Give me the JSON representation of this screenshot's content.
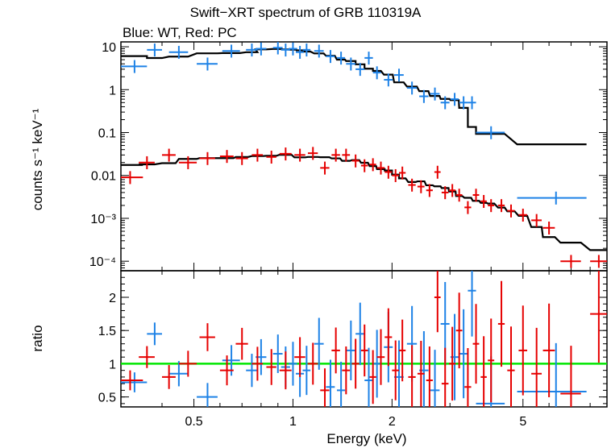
{
  "title": "Swift−XRT spectrum of GRB 110319A",
  "subtitle": "Blue: WT, Red: PC",
  "colors": {
    "wt": "#1e82e6",
    "pc": "#e60000",
    "model": "#000000",
    "unity": "#00e600"
  },
  "chart_data": [
    {
      "type": "scatter",
      "panel": "spectrum",
      "xlabel": "Energy (keV)",
      "ylabel": "counts s⁻¹ keV⁻¹",
      "xscale": "log",
      "yscale": "log",
      "xlim": [
        0.3,
        9.0
      ],
      "ylim": [
        6e-05,
        13
      ],
      "y_tick_labels": [
        "10",
        "1",
        "0.1",
        "0.01",
        "10⁻³",
        "10⁻⁴"
      ],
      "y_tick_values": [
        10,
        1,
        0.1,
        0.01,
        0.001,
        0.0001
      ],
      "series": [
        {
          "name": "Blue: WT",
          "x": [
            0.33,
            0.38,
            0.45,
            0.55,
            0.65,
            0.75,
            0.8,
            0.9,
            0.95,
            1.0,
            1.05,
            1.1,
            1.2,
            1.3,
            1.4,
            1.5,
            1.6,
            1.7,
            1.8,
            1.95,
            2.1,
            2.3,
            2.5,
            2.7,
            2.9,
            3.1,
            3.3,
            3.5,
            4.0,
            6.3
          ],
          "xerr": [
            0.03,
            0.02,
            0.03,
            0.04,
            0.04,
            0.03,
            0.03,
            0.03,
            0.03,
            0.03,
            0.03,
            0.03,
            0.04,
            0.04,
            0.04,
            0.05,
            0.05,
            0.05,
            0.05,
            0.06,
            0.07,
            0.08,
            0.08,
            0.09,
            0.09,
            0.09,
            0.1,
            0.1,
            0.4,
            1.5
          ],
          "y": [
            3.5,
            8.5,
            7.5,
            4,
            8,
            8.5,
            9,
            9.5,
            8.5,
            9,
            7.5,
            8.5,
            8,
            6,
            5.5,
            4,
            3,
            5.5,
            2.5,
            1.7,
            2.2,
            1.1,
            0.7,
            0.8,
            0.5,
            0.6,
            0.5,
            0.5,
            0.1,
            0.003
          ]
        },
        {
          "name": "Red: PC",
          "x": [
            0.32,
            0.36,
            0.42,
            0.48,
            0.55,
            0.63,
            0.7,
            0.78,
            0.86,
            0.95,
            1.05,
            1.15,
            1.25,
            1.35,
            1.45,
            1.55,
            1.65,
            1.75,
            1.85,
            1.95,
            2.05,
            2.15,
            2.3,
            2.45,
            2.6,
            2.75,
            2.9,
            3.05,
            3.2,
            3.4,
            3.6,
            3.8,
            4.0,
            4.3,
            4.6,
            5.0,
            5.5,
            6.0,
            7.0,
            8.5
          ],
          "xerr": [
            0.03,
            0.02,
            0.02,
            0.03,
            0.03,
            0.03,
            0.03,
            0.03,
            0.03,
            0.04,
            0.04,
            0.04,
            0.04,
            0.04,
            0.04,
            0.04,
            0.04,
            0.04,
            0.05,
            0.05,
            0.05,
            0.05,
            0.06,
            0.06,
            0.06,
            0.06,
            0.07,
            0.07,
            0.07,
            0.08,
            0.08,
            0.08,
            0.09,
            0.1,
            0.12,
            0.15,
            0.2,
            0.25,
            0.5,
            0.5
          ],
          "y": [
            0.009,
            0.02,
            0.03,
            0.02,
            0.025,
            0.028,
            0.025,
            0.03,
            0.027,
            0.032,
            0.03,
            0.033,
            0.015,
            0.03,
            0.03,
            0.022,
            0.017,
            0.018,
            0.015,
            0.012,
            0.01,
            0.0115,
            0.006,
            0.0055,
            0.0045,
            0.012,
            0.004,
            0.0045,
            0.0035,
            0.0018,
            0.0035,
            0.0025,
            0.002,
            0.002,
            0.0015,
            0.0012,
            0.0009,
            0.0006,
            0.0001,
            0.0001
          ]
        }
      ]
    },
    {
      "type": "scatter",
      "panel": "ratio",
      "xlabel": "Energy (keV)",
      "ylabel": "ratio",
      "xscale": "log",
      "xlim": [
        0.3,
        9.0
      ],
      "ylim": [
        0.35,
        2.4
      ],
      "x_tick_labels": [
        "0.5",
        "1",
        "2",
        "5"
      ],
      "x_tick_values": [
        0.5,
        1,
        2,
        5
      ],
      "y_tick_labels": [
        "0.5",
        "1",
        "1.5",
        "2"
      ],
      "y_tick_values": [
        0.5,
        1,
        1.5,
        2
      ],
      "reference_line": 1,
      "series": [
        {
          "name": "Blue: WT",
          "x": [
            0.33,
            0.38,
            0.45,
            0.55,
            0.65,
            0.75,
            0.8,
            0.9,
            0.95,
            1.0,
            1.05,
            1.1,
            1.2,
            1.3,
            1.4,
            1.5,
            1.6,
            1.7,
            1.8,
            1.95,
            2.1,
            2.3,
            2.5,
            2.7,
            2.9,
            3.1,
            3.3,
            3.5,
            4.0,
            6.3
          ],
          "y": [
            0.72,
            1.45,
            0.85,
            0.5,
            1.05,
            0.9,
            1.1,
            1.15,
            0.95,
            1.0,
            0.85,
            0.9,
            1.3,
            0.65,
            0.6,
            1.2,
            1.45,
            0.75,
            1.0,
            1.25,
            0.8,
            1.3,
            0.9,
            0.6,
            1.6,
            1.1,
            1.15,
            2.1,
            0.4,
            0.58
          ]
        },
        {
          "name": "Red: PC",
          "x": [
            0.32,
            0.36,
            0.42,
            0.48,
            0.55,
            0.63,
            0.7,
            0.78,
            0.86,
            0.95,
            1.05,
            1.15,
            1.25,
            1.35,
            1.45,
            1.55,
            1.65,
            1.75,
            1.85,
            1.95,
            2.05,
            2.15,
            2.3,
            2.45,
            2.6,
            2.75,
            2.9,
            3.05,
            3.2,
            3.4,
            3.6,
            3.8,
            4.0,
            4.3,
            4.6,
            5.0,
            5.5,
            6.0,
            7.0,
            8.5
          ],
          "y": [
            0.75,
            1.1,
            0.8,
            1.0,
            1.4,
            0.9,
            1.3,
            1.0,
            0.95,
            0.9,
            1.1,
            1.0,
            0.6,
            1.2,
            0.9,
            1.0,
            1.2,
            0.8,
            1.1,
            1.4,
            0.9,
            1.2,
            0.8,
            0.85,
            0.75,
            2.0,
            0.7,
            1.0,
            1.5,
            0.65,
            1.3,
            0.8,
            1.05,
            1.6,
            0.9,
            1.2,
            0.85,
            1.2,
            0.55,
            1.75
          ]
        }
      ]
    }
  ]
}
